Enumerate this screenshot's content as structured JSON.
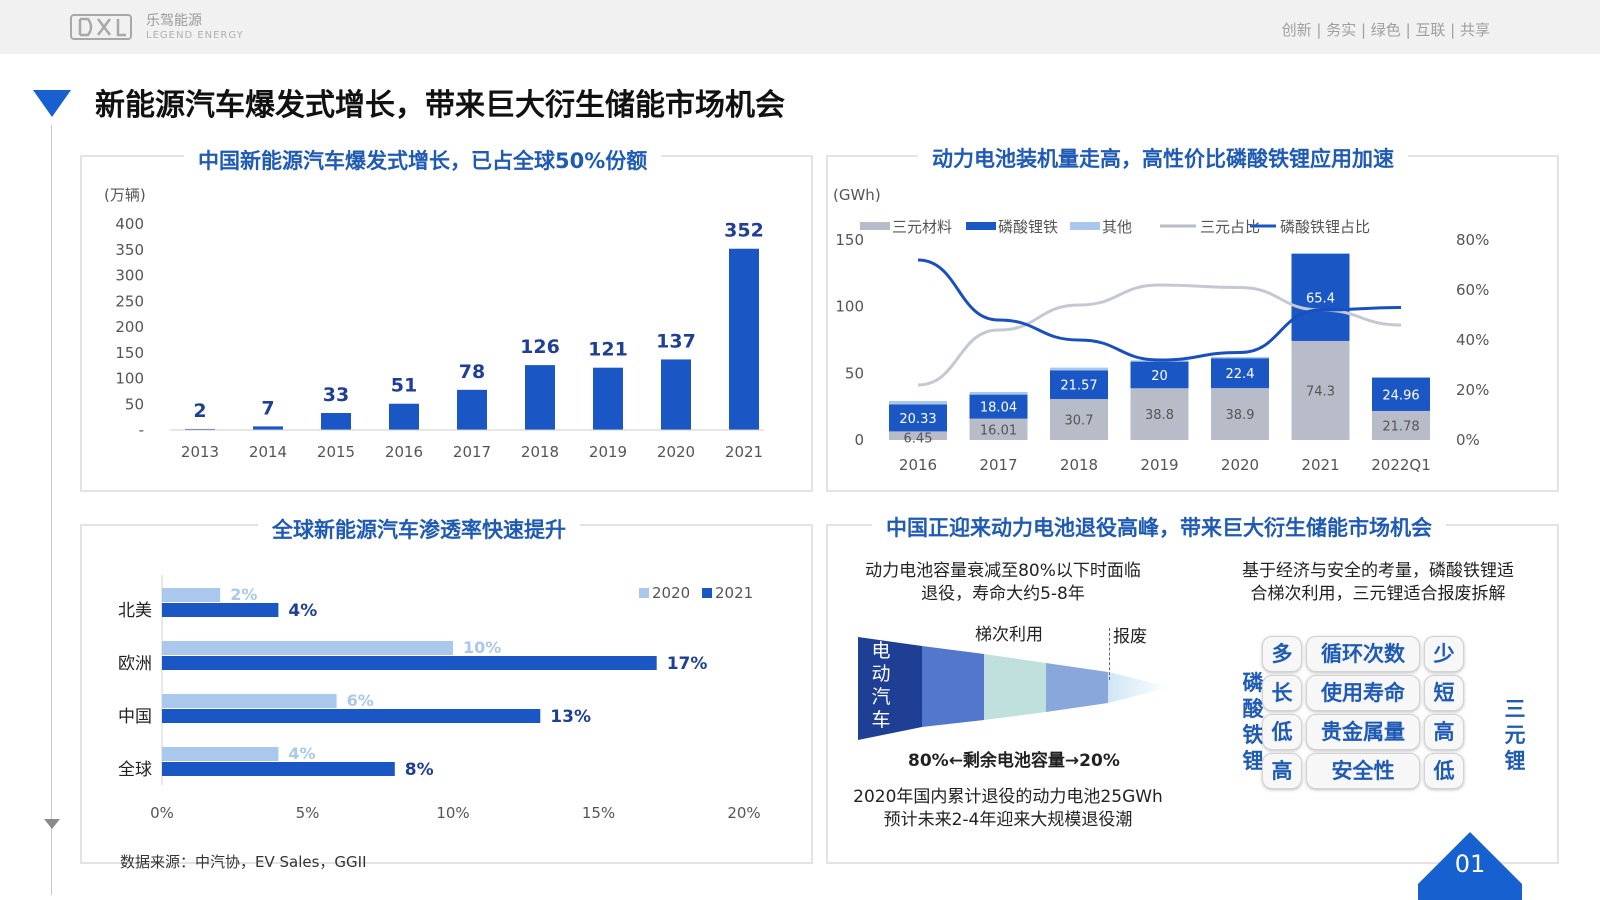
{
  "header": {
    "logo_cn": "乐驾能源",
    "logo_en": "LEGEND ENERGY",
    "slogan": "创新 | 务实 | 绿色 | 互联 | 共享"
  },
  "page_title": "新能源汽车爆发式增长，带来巨大衍生储能市场机会",
  "source": "数据来源：中汽协，EV Sales，GGII",
  "page_number": "01",
  "colors": {
    "accent": "#1660cf",
    "bar_dark": "#1a56c4",
    "bar_light": "#a9c8ec",
    "ternary": "#b7bcc8"
  },
  "chart_data": [
    {
      "type": "bar",
      "title": "中国新能源汽车爆发式增长，已占全球50%份额",
      "ylabel": "(万辆)",
      "categories": [
        "2013",
        "2014",
        "2015",
        "2016",
        "2017",
        "2018",
        "2019",
        "2020",
        "2021"
      ],
      "values": [
        2,
        7,
        33,
        51,
        78,
        126,
        121,
        137,
        352
      ],
      "data_labels": [
        "2",
        "7",
        "33",
        "51",
        "78",
        "126",
        "121",
        "137",
        "352"
      ],
      "yticks": [
        "400",
        "350",
        "300",
        "250",
        "200",
        "150",
        "100",
        "50",
        "-"
      ],
      "ylim": [
        0,
        400
      ]
    },
    {
      "type": "bar",
      "title": "动力电池装机量走高，高性价比磷酸铁锂应用加速",
      "ylabel": "(GWh)",
      "categories": [
        "2016",
        "2017",
        "2018",
        "2019",
        "2020",
        "2021",
        "2022Q1"
      ],
      "legend": [
        "三元材料",
        "磷酸锂铁",
        "其他",
        "三元占比",
        "磷酸铁锂占比"
      ],
      "series": [
        {
          "name": "三元材料",
          "values": [
            6.45,
            16.01,
            30.7,
            38.8,
            38.9,
            74.3,
            21.78
          ],
          "labels": [
            "6.45",
            "16.01",
            "30.7",
            "38.8",
            "38.9",
            "74.3",
            "21.78"
          ]
        },
        {
          "name": "磷酸锂铁",
          "values": [
            20.33,
            18.04,
            21.57,
            20,
            22.4,
            65.4,
            24.96
          ],
          "labels": [
            "20.33",
            "18.04",
            "21.57",
            "20",
            "22.4",
            "65.4",
            "24.96"
          ]
        },
        {
          "name": "其他",
          "values": [
            2.5,
            2,
            2,
            1,
            1,
            0.5,
            0.5
          ]
        },
        {
          "name": "三元占比",
          "axis": "right",
          "values": [
            22,
            44,
            54,
            62,
            61,
            52,
            46
          ]
        },
        {
          "name": "磷酸铁锂占比",
          "axis": "right",
          "values": [
            72,
            48,
            40,
            32,
            35,
            52,
            53
          ]
        }
      ],
      "yticks_left": [
        "150",
        "100",
        "50",
        "0"
      ],
      "yticks_right": [
        "80%",
        "60%",
        "40%",
        "20%",
        "0%"
      ],
      "ylim": [
        0,
        150
      ],
      "ylim_right": [
        0,
        80
      ]
    },
    {
      "type": "bar",
      "orientation": "horizontal",
      "title": "全球新能源汽车渗透率快速提升",
      "categories": [
        "北美",
        "欧洲",
        "中国",
        "全球"
      ],
      "series": [
        {
          "name": "2020",
          "values": [
            2,
            10,
            6,
            4
          ],
          "labels": [
            "2%",
            "10%",
            "6%",
            "4%"
          ]
        },
        {
          "name": "2021",
          "values": [
            4,
            17,
            13,
            8
          ],
          "labels": [
            "4%",
            "17%",
            "13%",
            "8%"
          ]
        }
      ],
      "xticks": [
        "0%",
        "5%",
        "10%",
        "15%",
        "20%"
      ],
      "xlim": [
        0,
        20
      ]
    }
  ],
  "panel4": {
    "title": "中国正迎来动力电池退役高峰，带来巨大衍生储能市场机会",
    "left_text_1": "动力电池容量衰减至80%以下时面临",
    "left_text_2": "退役，寿命大约5-8年",
    "right_text_1": "基于经济与安全的考量，磷酸铁锂适",
    "right_text_2": "合梯次利用，三元锂适合报废拆解",
    "funnel_ev": "电动汽车",
    "funnel_cascade": "梯次利用",
    "funnel_scrap": "报废",
    "funnel_caption": "80%←剩余电池容量→20%",
    "bottom_text_1": "2020年国内累计退役的动力电池25GWh",
    "bottom_text_2": "预计未来2-4年迎来大规模退役潮",
    "lfp_label": "磷酸铁锂",
    "ternary_label": "三元锂",
    "rows": [
      {
        "left": "多",
        "attr": "循环次数",
        "right": "少"
      },
      {
        "left": "长",
        "attr": "使用寿命",
        "right": "短"
      },
      {
        "left": "低",
        "attr": "贵金属量",
        "right": "高"
      },
      {
        "left": "高",
        "attr": "安全性",
        "right": "低"
      }
    ]
  }
}
